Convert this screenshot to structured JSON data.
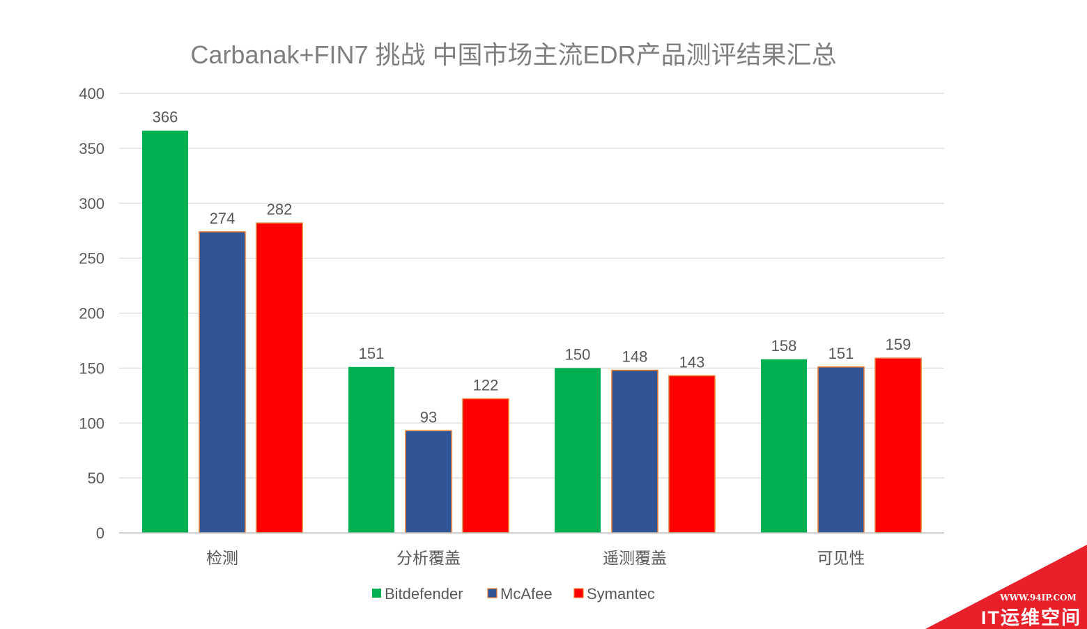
{
  "chart_data": {
    "type": "bar",
    "title": "Carbanak+FIN7 挑战 中国市场主流EDR产品测评结果汇总",
    "categories": [
      "检测",
      "分析覆盖",
      "遥测覆盖",
      "可见性"
    ],
    "series": [
      {
        "name": "Bitdefender",
        "color": "#00b050",
        "values": [
          366,
          151,
          150,
          158
        ]
      },
      {
        "name": "McAfee",
        "color": "#2f5597",
        "values": [
          274,
          93,
          148,
          151
        ]
      },
      {
        "name": "Symantec",
        "color": "#ff0000",
        "values": [
          282,
          122,
          143,
          159
        ]
      }
    ],
    "ylim": [
      0,
      400
    ],
    "yticks": [
      0,
      50,
      100,
      150,
      200,
      250,
      300,
      350,
      400
    ],
    "xlabel": "",
    "ylabel": "",
    "grid": true,
    "legend_position": "bottom",
    "bar_edge_color": "#ed7d31"
  },
  "watermark": {
    "url": "WWW.94IP.COM",
    "name": "IT运维空间",
    "color": "#e8202a"
  }
}
